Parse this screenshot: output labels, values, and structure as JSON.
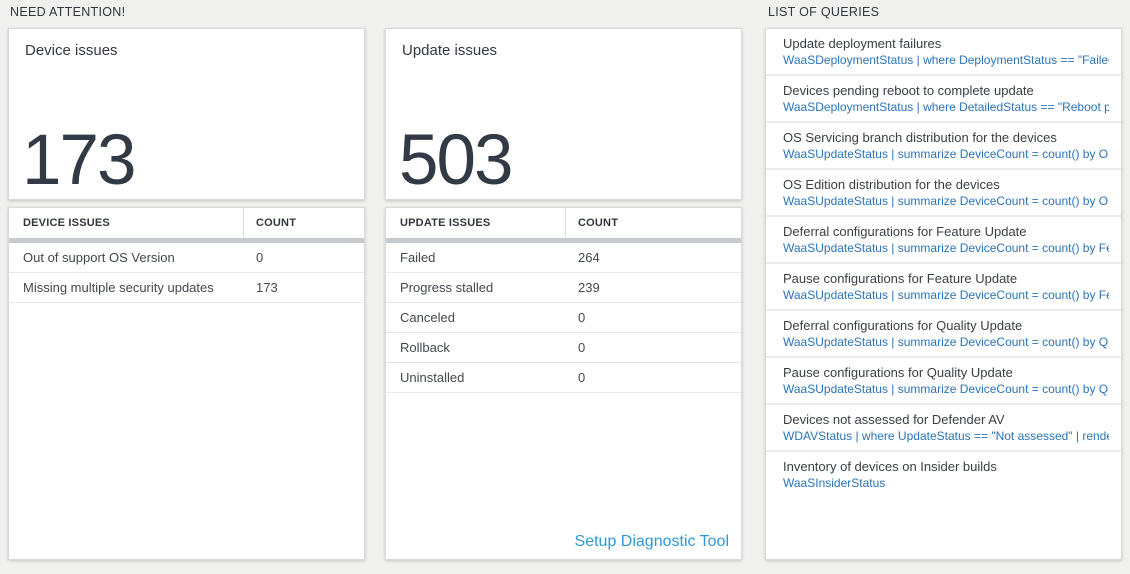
{
  "need_attention": {
    "header": "NEED ATTENTION!",
    "device_tile": {
      "title": "Device issues",
      "value": "173"
    },
    "device_table": {
      "columns": [
        "DEVICE ISSUES",
        "COUNT"
      ],
      "rows": [
        {
          "label": "Out of support OS Version",
          "count": "0"
        },
        {
          "label": "Missing multiple security updates",
          "count": "173"
        }
      ]
    },
    "update_tile": {
      "title": "Update issues",
      "value": "503"
    },
    "update_table": {
      "columns": [
        "UPDATE ISSUES",
        "COUNT"
      ],
      "rows": [
        {
          "label": "Failed",
          "count": "264"
        },
        {
          "label": "Progress stalled",
          "count": "239"
        },
        {
          "label": "Canceled",
          "count": "0"
        },
        {
          "label": "Rollback",
          "count": "0"
        },
        {
          "label": "Uninstalled",
          "count": "0"
        }
      ],
      "footer_link": "Setup Diagnostic Tool"
    }
  },
  "queries": {
    "header": "LIST OF QUERIES",
    "items": [
      {
        "title": "Update deployment failures",
        "query": "WaaSDeploymentStatus | where DeploymentStatus == \"Failed\" |..."
      },
      {
        "title": "Devices pending reboot to complete update",
        "query": "WaaSDeploymentStatus | where DetailedStatus == \"Reboot pend..."
      },
      {
        "title": "OS Servicing branch distribution for the devices",
        "query": "WaaSUpdateStatus | summarize DeviceCount = count() by OSSer..."
      },
      {
        "title": "OS Edition distribution for the devices",
        "query": "WaaSUpdateStatus | summarize DeviceCount = count() by OSEdit..."
      },
      {
        "title": "Deferral configurations for Feature Update",
        "query": "WaaSUpdateStatus | summarize DeviceCount = count() by Featur..."
      },
      {
        "title": "Pause configurations for Feature Update",
        "query": "WaaSUpdateStatus | summarize DeviceCount = count() by Featur..."
      },
      {
        "title": "Deferral configurations for Quality Update",
        "query": "WaaSUpdateStatus | summarize DeviceCount = count() by Qualit..."
      },
      {
        "title": "Pause configurations for Quality Update",
        "query": "WaaSUpdateStatus | summarize DeviceCount = count() by Qualit..."
      },
      {
        "title": "Devices not assessed for Defender AV",
        "query": "WDAVStatus | where UpdateStatus == \"Not assessed\" | render ta..."
      },
      {
        "title": "Inventory of devices on Insider builds",
        "query": "WaaSInsiderStatus"
      }
    ]
  },
  "colors": {
    "page_background": "#f0f0ef",
    "card_background": "#ffffff",
    "metric_text": "#323a45",
    "query_link_blue": "#2b74b9",
    "diagnostic_link_blue": "#2f99d8",
    "scroll_track_gray": "#c8cbcd"
  }
}
